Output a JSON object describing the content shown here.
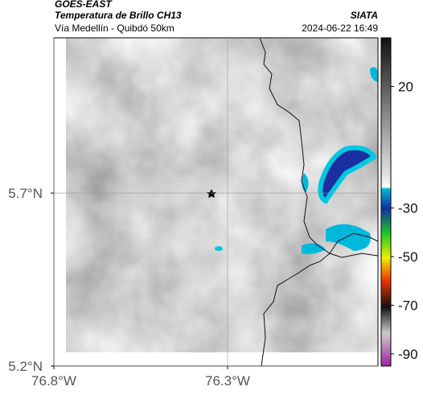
{
  "header": {
    "left": [
      "GOES-EAST",
      "Temperatura de Brillo CH13",
      "Vía Medellín - Quibdó 50km"
    ],
    "right": [
      "SIATA",
      "2024-06-22 16:49"
    ]
  },
  "map": {
    "xlim": [
      -76.8,
      -75.867
    ],
    "ylim": [
      5.2,
      6.149
    ],
    "xticks": [
      {
        "value": -76.8,
        "label": "76.8°W"
      },
      {
        "value": -76.3,
        "label": "76.3°W"
      }
    ],
    "yticks": [
      {
        "value": 5.7,
        "label": "5.7°N"
      },
      {
        "value": 5.2,
        "label": "5.2°N"
      }
    ]
  },
  "colorbar": {
    "lim": [
      40,
      -95
    ],
    "ticks": [
      20,
      -30,
      -50,
      -70,
      -90
    ]
  }
}
